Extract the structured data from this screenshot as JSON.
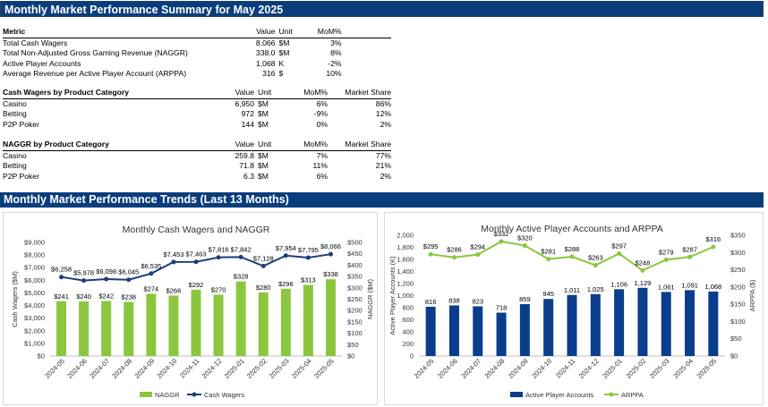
{
  "header": {
    "summary_title": "Monthly Market Performance Summary for May 2025",
    "trends_title": "Monthly Market Performance Trends (Last 13 Months)"
  },
  "overview_table": {
    "headers": [
      "Metric",
      "Value",
      "Unit",
      "MoM%"
    ],
    "rows": [
      [
        "Total Cash Wagers",
        "8,066",
        "$M",
        "3%"
      ],
      [
        "Total Non-Adjusted Gross Gaming Revenue (NAGGR)",
        "338.0",
        "$M",
        "8%"
      ],
      [
        "Active Player Accounts",
        "1,068",
        "K",
        "-2%"
      ],
      [
        "Average Revenue per Active Player Account (ARPPA)",
        "316",
        "$",
        "10%"
      ]
    ]
  },
  "wagers_table": {
    "headers": [
      "Cash Wagers by Product Category",
      "Value",
      "Unit",
      "MoM%",
      "Market Share"
    ],
    "rows": [
      [
        "Casino",
        "6,950",
        "$M",
        "6%",
        "86%"
      ],
      [
        "Betting",
        "972",
        "$M",
        "-9%",
        "12%"
      ],
      [
        "P2P Poker",
        "144",
        "$M",
        "0%",
        "2%"
      ]
    ]
  },
  "naggr_table": {
    "headers": [
      "NAGGR by Product Category",
      "Value",
      "Unit",
      "MoM%",
      "Market Share"
    ],
    "rows": [
      [
        "Casino",
        "259.8",
        "$M",
        "7%",
        "77%"
      ],
      [
        "Betting",
        "71.8",
        "$M",
        "11%",
        "21%"
      ],
      [
        "P2P Poker",
        "6.3",
        "$M",
        "6%",
        "2%"
      ]
    ]
  },
  "colors": {
    "banner": "#0a3d7c",
    "naggr_bar": "#8cc63f",
    "wagers_line": "#1f3d7a",
    "players_bar": "#0a3d8c",
    "arppa_line": "#8cc63f"
  },
  "chart_data": [
    {
      "type": "bar",
      "title": "Monthly Cash Wagers and NAGGR",
      "categories": [
        "2024-05",
        "2024-06",
        "2024-07",
        "2024-08",
        "2024-09",
        "2024-10",
        "2024-11",
        "2024-12",
        "2025-01",
        "2025-02",
        "2025-03",
        "2025-04",
        "2025-05"
      ],
      "series": [
        {
          "name": "NAGGR",
          "kind": "bar",
          "axis": "right",
          "values": [
            241,
            240,
            242,
            238,
            274,
            266,
            292,
            270,
            328,
            280,
            296,
            313,
            338
          ],
          "labels": [
            "$241",
            "$240",
            "$242",
            "$238",
            "$274",
            "$266",
            "$292",
            "$270",
            "$328",
            "$280",
            "$296",
            "$313",
            "$338"
          ]
        },
        {
          "name": "Cash Wagers",
          "kind": "line",
          "axis": "left",
          "values": [
            6258,
            5978,
            6098,
            6045,
            6535,
            7453,
            7463,
            7816,
            7842,
            7128,
            7954,
            7795,
            8066
          ],
          "labels": [
            "$6,258",
            "$5,978",
            "$6,098",
            "$6,045",
            "$6,535",
            "$7,453",
            "$7,463",
            "$7,816",
            "$7,842",
            "$7,128",
            "$7,954",
            "$7,795",
            "$8,066"
          ]
        }
      ],
      "ylabel": "Cash Wagers ($M)",
      "y2label": "NAGGR ($M)",
      "ylim": [
        0,
        9000
      ],
      "y2lim": [
        0,
        500
      ],
      "yticks": [
        "$0",
        "$1,000",
        "$2,000",
        "$3,000",
        "$4,000",
        "$5,000",
        "$6,000",
        "$7,000",
        "$8,000",
        "$9,000"
      ],
      "y2ticks": [
        "$0",
        "$50",
        "$100",
        "$150",
        "$200",
        "$250",
        "$300",
        "$350",
        "$400",
        "$450",
        "$500"
      ],
      "legend": "bottom",
      "grid": false
    },
    {
      "type": "bar",
      "title": "Monthly Active Player Accounts and ARPPA",
      "categories": [
        "2024-05",
        "2024-06",
        "2024-07",
        "2024-08",
        "2024-09",
        "2024-10",
        "2024-11",
        "2024-12",
        "2025-01",
        "2025-02",
        "2025-03",
        "2025-04",
        "2025-05"
      ],
      "series": [
        {
          "name": "Active Player Accounts",
          "kind": "bar",
          "axis": "left",
          "values": [
            816,
            838,
            823,
            718,
            859,
            945,
            1011,
            1025,
            1106,
            1129,
            1061,
            1091,
            1068
          ],
          "labels": [
            "816",
            "838",
            "823",
            "718",
            "859",
            "945",
            "1,011",
            "1,025",
            "1,106",
            "1,129",
            "1,061",
            "1,091",
            "1,068"
          ]
        },
        {
          "name": "ARPPA",
          "kind": "line",
          "axis": "right",
          "values": [
            295,
            286,
            294,
            332,
            320,
            281,
            288,
            263,
            297,
            248,
            279,
            287,
            316
          ],
          "labels": [
            "$295",
            "$286",
            "$294",
            "$332",
            "$320",
            "$281",
            "$288",
            "$263",
            "$297",
            "$248",
            "$279",
            "$287",
            "$316"
          ]
        }
      ],
      "ylabel": "Active Player Accounts (K)",
      "y2label": "ARPPA ($)",
      "ylim": [
        0,
        2000
      ],
      "y2lim": [
        0,
        350
      ],
      "yticks": [
        "0",
        "200",
        "400",
        "600",
        "800",
        "1,000",
        "1,200",
        "1,400",
        "1,600",
        "1,800",
        "2,000"
      ],
      "y2ticks": [
        "$0",
        "$50",
        "$100",
        "$150",
        "$200",
        "$250",
        "$300",
        "$350"
      ],
      "legend": "bottom",
      "grid": false
    }
  ]
}
